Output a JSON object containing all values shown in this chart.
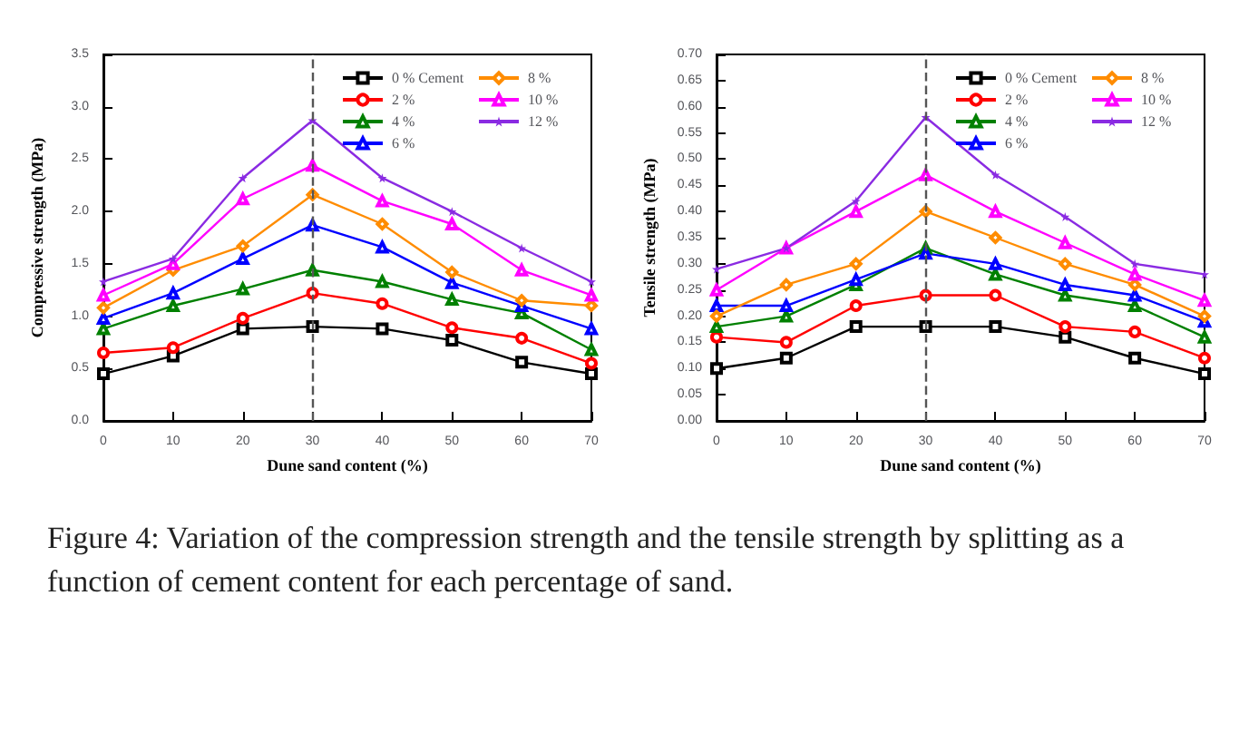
{
  "chart_data": [
    {
      "type": "line",
      "xlabel": "Dune sand content (%)",
      "ylabel": "Compressive strength (MPa)",
      "x": [
        0,
        10,
        20,
        30,
        40,
        50,
        60,
        70
      ],
      "xlim": [
        0,
        70
      ],
      "xticks": [
        0,
        10,
        20,
        30,
        40,
        50,
        60,
        70
      ],
      "ylim": [
        0,
        3.5
      ],
      "yticks": [
        {
          "value": 0,
          "label": "0.0"
        },
        {
          "value": 0.5,
          "label": "0.5"
        },
        {
          "value": 1,
          "label": "1.0"
        },
        {
          "value": 1.5,
          "label": "1.5"
        },
        {
          "value": 2,
          "label": "2.0"
        },
        {
          "value": 2.5,
          "label": "2.5"
        },
        {
          "value": 3,
          "label": "3.0"
        },
        {
          "value": 3.5,
          "label": "3.5"
        }
      ],
      "grid": false,
      "legend": "top right",
      "line_style": "solid",
      "ref_lines": [
        {
          "axis": "x",
          "value": 30,
          "color": "#555555",
          "line_style": "dashed"
        }
      ],
      "series": [
        {
          "name": "0 % Cement",
          "color": "#000000",
          "marker": "square",
          "values": [
            0.45,
            0.62,
            0.88,
            0.9,
            0.88,
            0.77,
            0.56,
            0.45
          ]
        },
        {
          "name": "2 %",
          "color": "#ff0000",
          "marker": "circle",
          "values": [
            0.65,
            0.7,
            0.98,
            1.22,
            1.12,
            0.89,
            0.79,
            0.55
          ]
        },
        {
          "name": "4 %",
          "color": "#008000",
          "marker": "triangle",
          "values": [
            0.88,
            1.1,
            1.26,
            1.44,
            1.33,
            1.16,
            1.03,
            0.68
          ]
        },
        {
          "name": "6 %",
          "color": "#0000ff",
          "marker": "triangle",
          "values": [
            0.98,
            1.22,
            1.55,
            1.87,
            1.66,
            1.32,
            1.1,
            0.88
          ]
        },
        {
          "name": "8 %",
          "color": "#ff8c00",
          "marker": "diamond",
          "values": [
            1.08,
            1.44,
            1.67,
            2.16,
            1.88,
            1.42,
            1.15,
            1.1
          ]
        },
        {
          "name": "10 %",
          "color": "#ff00ff",
          "marker": "triangle",
          "values": [
            1.2,
            1.5,
            2.12,
            2.44,
            2.1,
            1.88,
            1.44,
            1.2
          ]
        },
        {
          "name": "12 %",
          "color": "#8a2be2",
          "marker": "star",
          "values": [
            1.33,
            1.55,
            2.32,
            2.87,
            2.32,
            2.0,
            1.65,
            1.33
          ]
        }
      ],
      "annotations": [
        "Figure 4: Variation of the compression strength and the tensile strength by splitting as a function of cement content for each percentage of sand."
      ]
    },
    {
      "type": "line",
      "xlabel": "Dune sand content (%)",
      "ylabel": "Tensile strength (MPa)",
      "x": [
        0,
        10,
        20,
        30,
        40,
        50,
        60,
        70
      ],
      "xlim": [
        0,
        70
      ],
      "xticks": [
        0,
        10,
        20,
        30,
        40,
        50,
        60,
        70
      ],
      "ylim": [
        0,
        0.7
      ],
      "yticks": [
        {
          "value": 0,
          "label": "0.00"
        },
        {
          "value": 0.05,
          "label": "0.05"
        },
        {
          "value": 0.1,
          "label": "0.10"
        },
        {
          "value": 0.15,
          "label": "0.15"
        },
        {
          "value": 0.2,
          "label": "0.20"
        },
        {
          "value": 0.25,
          "label": "0.25"
        },
        {
          "value": 0.3,
          "label": "0.30"
        },
        {
          "value": 0.35,
          "label": "0.35"
        },
        {
          "value": 0.4,
          "label": "0.40"
        },
        {
          "value": 0.45,
          "label": "0.45"
        },
        {
          "value": 0.5,
          "label": "0.50"
        },
        {
          "value": 0.55,
          "label": "0.55"
        },
        {
          "value": 0.6,
          "label": "0.60"
        },
        {
          "value": 0.65,
          "label": "0.65"
        },
        {
          "value": 0.7,
          "label": "0.70"
        }
      ],
      "grid": false,
      "legend": "top right",
      "line_style": "solid",
      "ref_lines": [
        {
          "axis": "x",
          "value": 30,
          "color": "#555555",
          "line_style": "dashed"
        }
      ],
      "series": [
        {
          "name": "0 % Cement",
          "color": "#000000",
          "marker": "square",
          "values": [
            0.1,
            0.12,
            0.18,
            0.18,
            0.18,
            0.16,
            0.12,
            0.09
          ]
        },
        {
          "name": "2 %",
          "color": "#ff0000",
          "marker": "circle",
          "values": [
            0.16,
            0.15,
            0.22,
            0.24,
            0.24,
            0.18,
            0.17,
            0.12
          ]
        },
        {
          "name": "4 %",
          "color": "#008000",
          "marker": "triangle",
          "values": [
            0.18,
            0.2,
            0.26,
            0.33,
            0.28,
            0.24,
            0.22,
            0.16
          ]
        },
        {
          "name": "6 %",
          "color": "#0000ff",
          "marker": "triangle",
          "values": [
            0.22,
            0.22,
            0.27,
            0.32,
            0.3,
            0.26,
            0.24,
            0.19
          ]
        },
        {
          "name": "8 %",
          "color": "#ff8c00",
          "marker": "diamond",
          "values": [
            0.2,
            0.26,
            0.3,
            0.4,
            0.35,
            0.3,
            0.26,
            0.2
          ]
        },
        {
          "name": "10 %",
          "color": "#ff00ff",
          "marker": "triangle",
          "values": [
            0.25,
            0.33,
            0.4,
            0.47,
            0.4,
            0.34,
            0.28,
            0.23
          ]
        },
        {
          "name": "12 %",
          "color": "#8a2be2",
          "marker": "star",
          "values": [
            0.29,
            0.33,
            0.42,
            0.58,
            0.47,
            0.39,
            0.3,
            0.28
          ]
        }
      ]
    }
  ]
}
